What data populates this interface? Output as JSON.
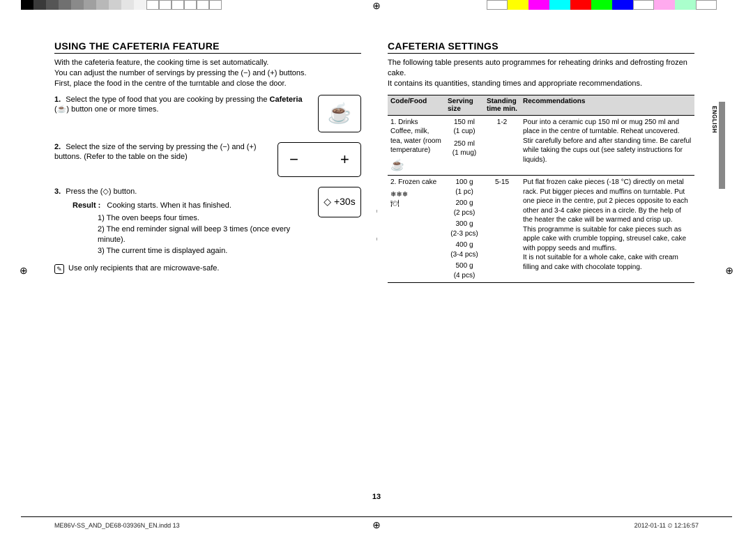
{
  "colorbar_left": [
    "#000000",
    "#3a3a3a",
    "#555555",
    "#707070",
    "#8a8a8a",
    "#a0a0a0",
    "#b8b8b8",
    "#cfcfcf",
    "#e4e4e4",
    "#f2f2f2",
    "#ffffff",
    "#ffffff",
    "#ffffff",
    "#ffffff",
    "#ffffff",
    "#ffffff"
  ],
  "colorbar_right": [
    "#ffffff",
    "#ffff00",
    "#ff00ff",
    "#00ffff",
    "#ff0000",
    "#00ff00",
    "#0000ff",
    "#ffffff",
    "#ffaaee",
    "#aaffcc",
    "#ffffff"
  ],
  "left": {
    "heading": "USING THE CAFETERIA FEATURE",
    "intro_l1": "With the cafeteria feature, the cooking time is set automatically.",
    "intro_l2": "You can adjust the number of servings by pressing the (−) and (+) buttons.",
    "intro_l3": "First, place the food in the centre of the turntable and close the door.",
    "step1_a": "Select the type of food that you are cooking by pressing the ",
    "step1_bold": "Cafeteria",
    "step1_b": " (☕) button one or more times.",
    "step2": "Select the size of the serving by pressing the (−) and (+) buttons. (Refer to the table on the side)",
    "step3": "Press the (◇) button.",
    "result_label": "Result :",
    "result_lead": "Cooking starts. When it has finished.",
    "result_1": "1)  The oven beeps four times.",
    "result_2": "2)  The end reminder signal will beep 3 times (once every minute).",
    "result_3": "3)  The current time is displayed again.",
    "note": "Use only recipients that are microwave-safe.",
    "icon1": "☕",
    "icon2_minus": "−",
    "icon2_plus": "+",
    "icon3": "◇ +30s"
  },
  "right": {
    "heading": "CAFETERIA SETTINGS",
    "intro_l1": "The following table presents auto programmes for reheating drinks and defrosting frozen cake.",
    "intro_l2": "It contains its quantities, standing times and appropriate recommendations.",
    "th_code": "Code/Food",
    "th_serv": "Serving size",
    "th_stand": "Standing time min.",
    "th_rec": "Recommendations",
    "row1": {
      "code": "1. Drinks\nCoffee, milk, tea, water (room temperature)",
      "icon": "☕",
      "serv1": "150 ml",
      "serv1b": "(1 cup)",
      "serv2": "250 ml",
      "serv2b": "(1 mug)",
      "stand": "1-2",
      "rec": "Pour into a ceramic cup 150 ml or mug 250 ml and place in the centre of turntable. Reheat uncovered.\nStir carefully before and after standing time. Be careful while taking the cups out (see safety instructions for liquids)."
    },
    "row2": {
      "code": "2. Frozen cake",
      "icon": "❄❄❄\n🍽",
      "s1": "100 g",
      "s1b": "(1 pc)",
      "s2": "200 g",
      "s2b": "(2 pcs)",
      "s3": "300 g",
      "s3b": "(2-3 pcs)",
      "s4": "400 g",
      "s4b": "(3-4 pcs)",
      "s5": "500 g",
      "s5b": "(4 pcs)",
      "stand": "5-15",
      "rec": "Put flat frozen cake pieces (-18 °C) directly on metal rack. Put bigger pieces and muffins on turntable. Put one piece in the centre, put 2 pieces opposite to each other and 3-4 cake pieces in a circle. By the help of the heater the cake will be warmed and crisp up.\nThis programme is suitable for cake pieces such as apple cake with crumble topping, streusel cake, cake with poppy seeds and muffins.\nIt is not suitable for a whole cake, cake with cream filling and cake with chocolate topping."
    },
    "lang": "ENGLISH"
  },
  "pagenum": "13",
  "footer_left": "ME86V-SS_AND_DE68-03936N_EN.indd   13",
  "footer_right": "2012-01-11   ⏲ 12:16:57"
}
